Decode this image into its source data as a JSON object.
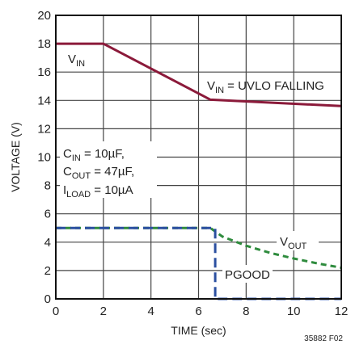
{
  "chart_data": {
    "type": "line",
    "xlabel": "TIME (sec)",
    "ylabel": "VOLTAGE (V)",
    "xlim": [
      0,
      12
    ],
    "ylim": [
      0,
      20
    ],
    "xticks": [
      0,
      2,
      4,
      6,
      8,
      10,
      12
    ],
    "yticks": [
      0,
      2,
      4,
      6,
      8,
      10,
      12,
      14,
      16,
      18,
      20
    ],
    "grid": true,
    "legend": "none",
    "series": [
      {
        "name": "VIN",
        "color": "#8b1a3a",
        "style": "solid",
        "x": [
          0,
          2,
          6.5,
          12
        ],
        "y": [
          18,
          18,
          14.05,
          13.6
        ]
      },
      {
        "name": "VOUT",
        "color": "#2e8b3d",
        "style": "dashed",
        "x": [
          0,
          6.5,
          7,
          8,
          9,
          10,
          11,
          12
        ],
        "y": [
          5,
          5,
          4.4,
          3.75,
          3.25,
          2.85,
          2.5,
          2.2
        ]
      },
      {
        "name": "PGOOD",
        "color": "#2b4fa0",
        "style": "dashed",
        "x": [
          0,
          6.7,
          6.7,
          12
        ],
        "y": [
          5,
          5,
          0,
          0
        ]
      }
    ],
    "annotations": {
      "vin": {
        "main": "V",
        "sub": "IN"
      },
      "uvlo": {
        "main": "V",
        "sub": "IN",
        "rest": " = UVLO FALLING"
      },
      "cin": {
        "main": "C",
        "sub": "IN",
        "rest": " = 10µF,"
      },
      "cout": {
        "main": "C",
        "sub": "OUT",
        "rest": " = 47µF,"
      },
      "iload": {
        "main": "I",
        "sub": "LOAD",
        "rest": " = 10µA"
      },
      "vout": {
        "main": "V",
        "sub": "OUT"
      },
      "pgood": "PGOOD",
      "figure_id": "35882 F02"
    }
  }
}
